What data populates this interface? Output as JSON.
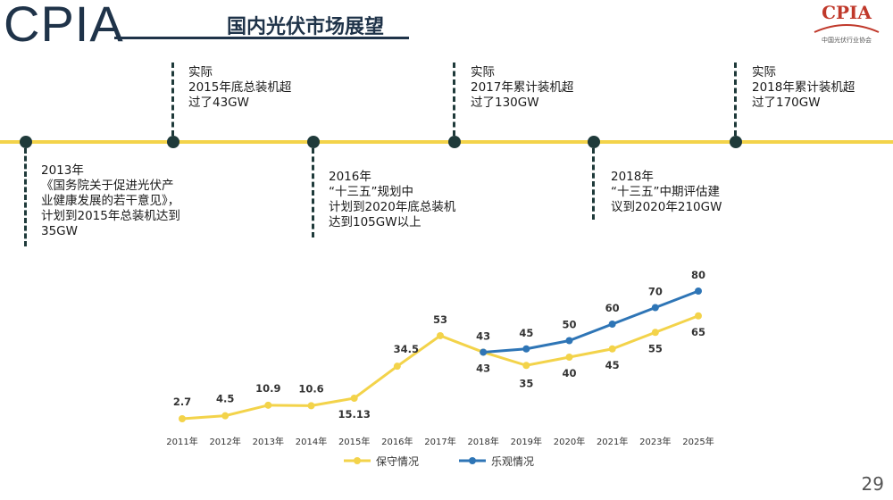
{
  "header": {
    "brand": "CPIA",
    "title": "国内光伏市场展望",
    "logo_text": "CPIA",
    "logo_sub": "中国光伏行业协会"
  },
  "timeline": {
    "events": [
      {
        "lines": [
          "2013年",
          "《国务院关于促进光伏产",
          "业健康发展的若干意见》，",
          "计划到2015年总装机达到",
          "35GW"
        ]
      },
      {
        "lines": [
          "实际",
          "2015年底总装机超",
          "过了43GW"
        ]
      },
      {
        "lines": [
          "2016年",
          "“十三五”规划中",
          "计划到2020年底总装机",
          "达到105GW以上"
        ]
      },
      {
        "lines": [
          "实际",
          "2017年累计装机超",
          "过了130GW"
        ]
      },
      {
        "lines": [
          "2018年",
          "“十三五”中期评估建",
          "议到2020年210GW"
        ]
      },
      {
        "lines": [
          "实际",
          "2018年累计装机超",
          "过了170GW"
        ]
      }
    ]
  },
  "page_number": "29",
  "colors": {
    "conservative": "#f3d34a",
    "optimistic": "#2e75b6",
    "timeline": "#f3d34a",
    "node": "#1f3a3a"
  },
  "chart_data": {
    "type": "line",
    "categories": [
      "2011年",
      "2012年",
      "2013年",
      "2014年",
      "2015年",
      "2016年",
      "2017年",
      "2018年",
      "2019年",
      "2020年",
      "2021年",
      "2023年",
      "2025年"
    ],
    "series": [
      {
        "name": "保守情况",
        "values": [
          2.7,
          4.5,
          10.9,
          10.6,
          15.13,
          34.5,
          53,
          43,
          35,
          40,
          45,
          55,
          65
        ],
        "labels": [
          "2.7",
          "4.5",
          "10.9",
          "10.6",
          "15.13",
          "34.5",
          "53",
          "43",
          "35",
          "40",
          "45",
          "55",
          "65"
        ]
      },
      {
        "name": "乐观情况",
        "values": [
          null,
          null,
          null,
          null,
          null,
          null,
          null,
          43,
          45,
          50,
          60,
          70,
          80
        ],
        "labels": [
          "",
          "",
          "",
          "",
          "",
          "",
          "",
          "43",
          "45",
          "50",
          "60",
          "70",
          "80"
        ]
      }
    ],
    "title": "",
    "xlabel": "",
    "ylabel": "",
    "legend": "bottom"
  }
}
